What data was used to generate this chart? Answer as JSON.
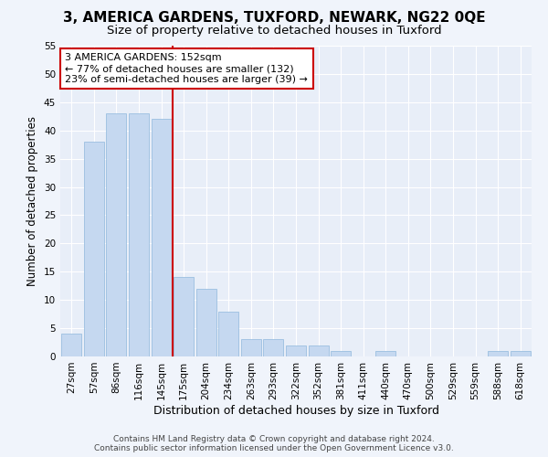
{
  "title1": "3, AMERICA GARDENS, TUXFORD, NEWARK, NG22 0QE",
  "title2": "Size of property relative to detached houses in Tuxford",
  "xlabel": "Distribution of detached houses by size in Tuxford",
  "ylabel": "Number of detached properties",
  "bar_labels": [
    "27sqm",
    "57sqm",
    "86sqm",
    "116sqm",
    "145sqm",
    "175sqm",
    "204sqm",
    "234sqm",
    "263sqm",
    "293sqm",
    "322sqm",
    "352sqm",
    "381sqm",
    "411sqm",
    "440sqm",
    "470sqm",
    "500sqm",
    "529sqm",
    "559sqm",
    "588sqm",
    "618sqm"
  ],
  "bar_values": [
    4,
    38,
    43,
    43,
    42,
    14,
    12,
    8,
    3,
    3,
    2,
    2,
    1,
    0,
    1,
    0,
    0,
    0,
    0,
    1,
    1
  ],
  "bar_color": "#c5d8f0",
  "bar_edge_color": "#9bbfe0",
  "background_color": "#f0f4fb",
  "plot_bg_color": "#e8eef8",
  "grid_color": "#ffffff",
  "vline_x": 4.5,
  "vline_color": "#cc0000",
  "annotation_text": "3 AMERICA GARDENS: 152sqm\n← 77% of detached houses are smaller (132)\n23% of semi-detached houses are larger (39) →",
  "annotation_box_color": "#ffffff",
  "annotation_box_edge": "#cc0000",
  "ylim": [
    0,
    55
  ],
  "yticks": [
    0,
    5,
    10,
    15,
    20,
    25,
    30,
    35,
    40,
    45,
    50,
    55
  ],
  "footer1": "Contains HM Land Registry data © Crown copyright and database right 2024.",
  "footer2": "Contains public sector information licensed under the Open Government Licence v3.0.",
  "title1_fontsize": 11,
  "title2_fontsize": 9.5,
  "xlabel_fontsize": 9,
  "ylabel_fontsize": 8.5,
  "tick_fontsize": 7.5,
  "annotation_fontsize": 8,
  "footer_fontsize": 6.5
}
